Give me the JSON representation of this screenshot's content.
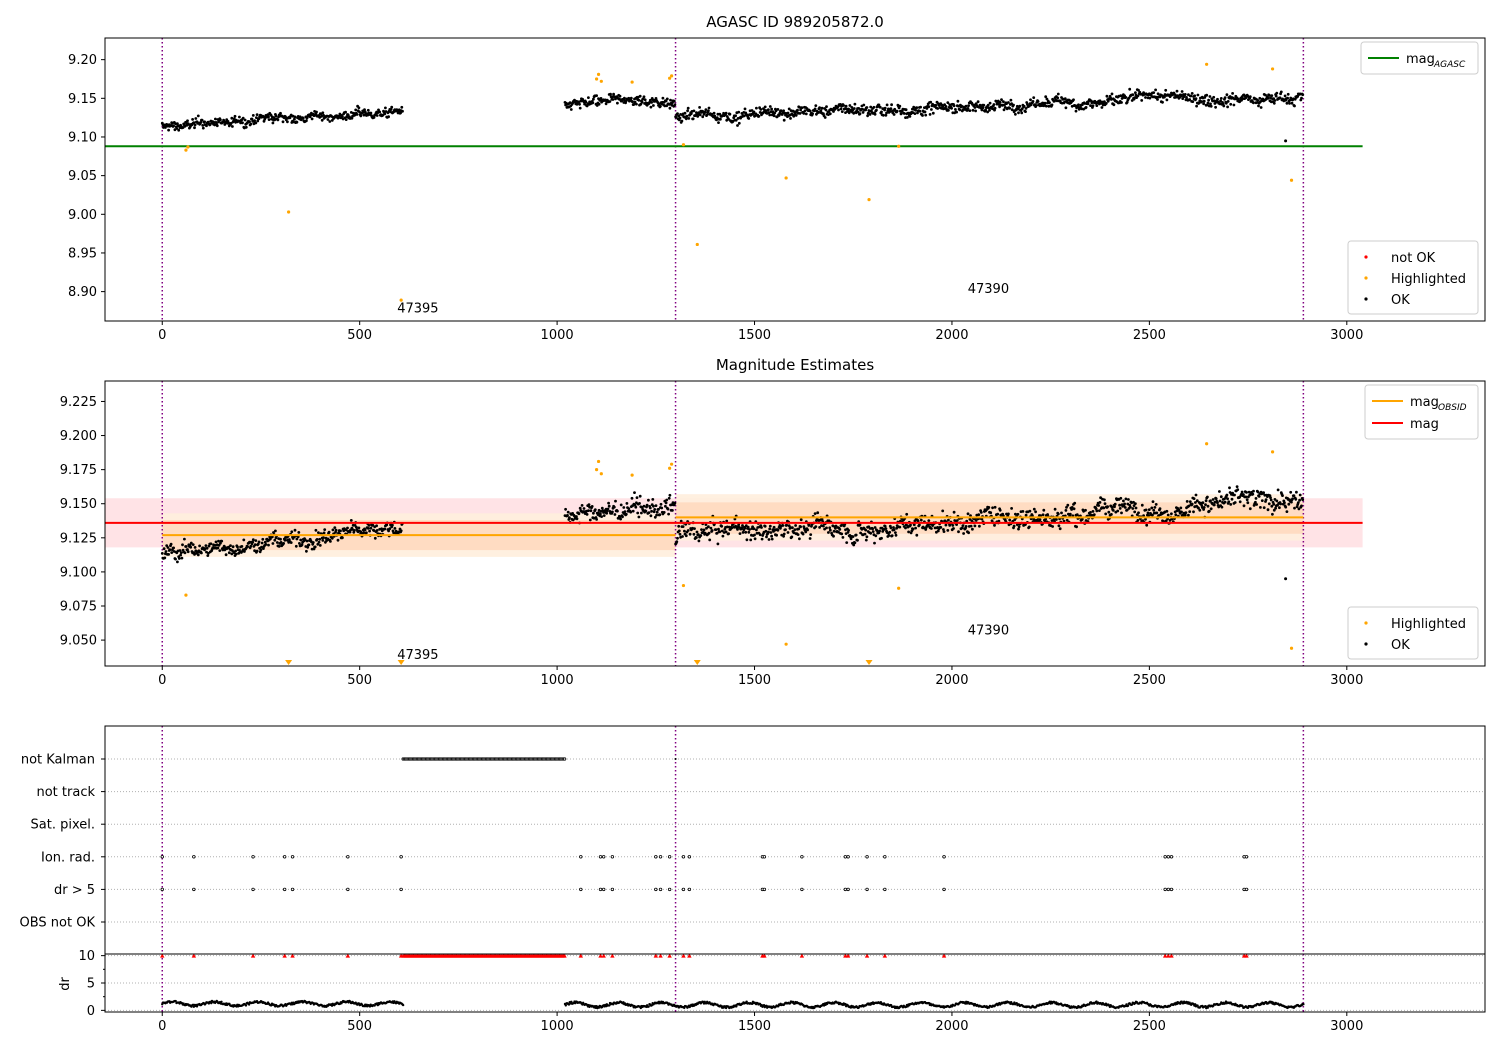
{
  "chart_data": [
    {
      "type": "scatter",
      "title": "AGASC ID 989205872.0",
      "xlabel": "",
      "ylabel": "",
      "xlim": [
        -145,
        3350
      ],
      "ylim": [
        8.862,
        9.228
      ],
      "xticks": [
        0,
        500,
        1000,
        1500,
        2000,
        2500,
        3000
      ],
      "yticks": [
        8.9,
        8.95,
        9.0,
        9.05,
        9.1,
        9.15,
        9.2
      ],
      "ytick_labels": [
        "8.90",
        "8.95",
        "9.00",
        "9.05",
        "9.10",
        "9.15",
        "9.20"
      ],
      "legend_lines": [
        {
          "label": "mag",
          "sub": "AGASC",
          "color": "#008000"
        }
      ],
      "legend_lines_position": "upper right",
      "legend_points": [
        {
          "label": "not OK",
          "color": "#ff0000"
        },
        {
          "label": "Highlighted",
          "color": "#ffa500"
        },
        {
          "label": "OK",
          "color": "#000000"
        }
      ],
      "legend_points_position": "lower right",
      "hlines": [
        {
          "y": 9.088,
          "xmin": -145,
          "xmax": 3040,
          "color": "#008000"
        }
      ],
      "vlines": [
        0,
        1300,
        2890
      ],
      "annotations": [
        {
          "text": "47395",
          "x": 595,
          "y": 8.873
        },
        {
          "text": "47390",
          "x": 2040,
          "y": 8.898
        }
      ],
      "segments_ok": [
        {
          "x0": 0,
          "x1": 610,
          "y0": 9.113,
          "y1": 9.134,
          "amp": 0.011
        },
        {
          "x0": 1020,
          "x1": 1300,
          "y0": 9.14,
          "y1": 9.147,
          "amp": 0.013
        },
        {
          "x0": 1300,
          "x1": 2890,
          "y0": 9.127,
          "y1": 9.155,
          "amp": 0.014
        }
      ],
      "highlighted": [
        {
          "x": 60,
          "y": 9.083
        },
        {
          "x": 65,
          "y": 9.087
        },
        {
          "x": 320,
          "y": 9.003
        },
        {
          "x": 605,
          "y": 8.889
        },
        {
          "x": 1100,
          "y": 9.175
        },
        {
          "x": 1105,
          "y": 9.181
        },
        {
          "x": 1112,
          "y": 9.172
        },
        {
          "x": 1190,
          "y": 9.171
        },
        {
          "x": 1285,
          "y": 9.176
        },
        {
          "x": 1290,
          "y": 9.179
        },
        {
          "x": 1320,
          "y": 9.09
        },
        {
          "x": 1355,
          "y": 8.961
        },
        {
          "x": 1580,
          "y": 9.047
        },
        {
          "x": 1790,
          "y": 9.019
        },
        {
          "x": 1865,
          "y": 9.088
        },
        {
          "x": 2645,
          "y": 9.194
        },
        {
          "x": 2812,
          "y": 9.188
        },
        {
          "x": 2860,
          "y": 9.044
        }
      ],
      "ok_outliers": [
        {
          "x": 2845,
          "y": 9.095
        }
      ]
    },
    {
      "type": "scatter",
      "title": "Magnitude Estimates",
      "xlabel": "",
      "ylabel": "",
      "xlim": [
        -145,
        3350
      ],
      "ylim": [
        9.031,
        9.24
      ],
      "xticks": [
        0,
        500,
        1000,
        1500,
        2000,
        2500,
        3000
      ],
      "yticks": [
        9.05,
        9.075,
        9.1,
        9.125,
        9.15,
        9.175,
        9.2,
        9.225
      ],
      "ytick_labels": [
        "9.050",
        "9.075",
        "9.100",
        "9.125",
        "9.150",
        "9.175",
        "9.200",
        "9.225"
      ],
      "legend_lines": [
        {
          "label": "mag",
          "sub": "OBSID",
          "color": "#ffa500"
        },
        {
          "label": "mag",
          "sub": "",
          "color": "#ff0000"
        }
      ],
      "legend_lines_position": "upper right",
      "legend_points": [
        {
          "label": "Highlighted",
          "color": "#ffa500"
        },
        {
          "label": "OK",
          "color": "#000000"
        }
      ],
      "legend_points_position": "lower right",
      "bands": [
        {
          "x0": -145,
          "x1": 3040,
          "ylo": 9.118,
          "yhi": 9.154,
          "color": "#ffe0e3"
        },
        {
          "x0": 0,
          "x1": 1300,
          "ylo": 9.111,
          "yhi": 9.143,
          "color": "#ffeedd"
        },
        {
          "x0": 0,
          "x1": 1300,
          "ylo": 9.116,
          "yhi": 9.138,
          "color": "#ffd9bf"
        },
        {
          "x0": 1300,
          "x1": 2890,
          "ylo": 9.123,
          "yhi": 9.157,
          "color": "#ffeedd"
        },
        {
          "x0": 1300,
          "x1": 2890,
          "ylo": 9.128,
          "yhi": 9.151,
          "color": "#ffd9bf"
        }
      ],
      "hlines": [
        {
          "y": 9.136,
          "xmin": -145,
          "xmax": 3040,
          "color": "#ff0000"
        },
        {
          "y": 9.127,
          "xmin": 0,
          "xmax": 1300,
          "color": "#ffa500"
        },
        {
          "y": 9.14,
          "xmin": 1300,
          "xmax": 2890,
          "color": "#ffa500"
        }
      ],
      "vlines": [
        0,
        1300,
        2890
      ],
      "annotations": [
        {
          "text": "47395",
          "x": 595,
          "y": 9.036
        },
        {
          "text": "47390",
          "x": 2040,
          "y": 9.054
        }
      ],
      "segments_ok": [
        {
          "x0": 0,
          "x1": 610,
          "y0": 9.113,
          "y1": 9.134,
          "amp": 0.011
        },
        {
          "x0": 1020,
          "x1": 1300,
          "y0": 9.14,
          "y1": 9.147,
          "amp": 0.013
        },
        {
          "x0": 1300,
          "x1": 2890,
          "y0": 9.127,
          "y1": 9.155,
          "amp": 0.014
        }
      ],
      "highlighted": [
        {
          "x": 60,
          "y": 9.083
        },
        {
          "x": 1100,
          "y": 9.175
        },
        {
          "x": 1105,
          "y": 9.181
        },
        {
          "x": 1112,
          "y": 9.172
        },
        {
          "x": 1190,
          "y": 9.171
        },
        {
          "x": 1285,
          "y": 9.176
        },
        {
          "x": 1290,
          "y": 9.179
        },
        {
          "x": 1320,
          "y": 9.09
        },
        {
          "x": 1580,
          "y": 9.047
        },
        {
          "x": 1865,
          "y": 9.088
        },
        {
          "x": 2645,
          "y": 9.194
        },
        {
          "x": 2812,
          "y": 9.188
        },
        {
          "x": 2860,
          "y": 9.044
        }
      ],
      "clipped_markers": [
        {
          "x": 320
        },
        {
          "x": 605
        },
        {
          "x": 1355
        },
        {
          "x": 1790
        }
      ],
      "ok_outliers": [
        {
          "x": 2845,
          "y": 9.095
        }
      ]
    },
    {
      "type": "scatter",
      "title": "",
      "xlabel": "",
      "ylabel": "",
      "xlim": [
        -145,
        3350
      ],
      "xticks": [
        0,
        500,
        1000,
        1500,
        2000,
        2500,
        3000
      ],
      "flag_labels": [
        "not Kalman",
        "not track",
        "Sat. pixel.",
        "Ion. rad.",
        "dr > 5",
        "OBS not OK"
      ],
      "vlines": [
        0,
        1300,
        2890
      ],
      "not_kalman_range": [
        610,
        1020
      ],
      "not_kalman_point": 1300,
      "event_times": [
        0,
        80,
        230,
        310,
        330,
        470,
        605,
        1060,
        1110,
        1118,
        1140,
        1250,
        1262,
        1285,
        1320,
        1335,
        1520,
        1525,
        1620,
        1730,
        1737,
        1785,
        1830,
        1980,
        2540,
        2548,
        2556,
        2740,
        2746
      ]
    },
    {
      "type": "line",
      "title": "",
      "xlabel": "",
      "ylabel": "dr",
      "xlim": [
        -145,
        3350
      ],
      "ylim": [
        -0.3,
        10.3
      ],
      "yticks": [
        0,
        5,
        10
      ],
      "segments": [
        {
          "x0": 0,
          "x1": 610,
          "base": 1.2,
          "amp": 0.6
        },
        {
          "x0": 1020,
          "x1": 2890,
          "base": 1.0,
          "amp": 0.7
        }
      ],
      "capped_value": 10
    }
  ]
}
